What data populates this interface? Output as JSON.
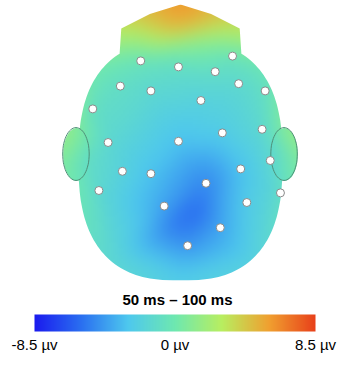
{
  "chart_data": {
    "type": "scalp_map",
    "title": "50 ms – 100 ms",
    "electrodes": [
      {
        "x": 0.07,
        "y": 0.71,
        "value": -4.5
      },
      {
        "x": -0.16,
        "y": 0.38,
        "value": -4
      },
      {
        "x": 0.39,
        "y": 0.56,
        "value": -4
      },
      {
        "x": 0.65,
        "y": 0.35,
        "value": -2.5
      },
      {
        "x": 0.98,
        "y": 0.27,
        "value": -1.5
      },
      {
        "x": -0.8,
        "y": 0.25,
        "value": -1.5
      },
      {
        "x": -0.57,
        "y": 0.09,
        "value": -2
      },
      {
        "x": -0.29,
        "y": 0.11,
        "value": -3
      },
      {
        "x": 0.25,
        "y": 0.19,
        "value": -5
      },
      {
        "x": 0.59,
        "y": 0.07,
        "value": -3
      },
      {
        "x": 0.88,
        "y": 0.0,
        "value": -1.5
      },
      {
        "x": -0.71,
        "y": -0.15,
        "value": -1.5
      },
      {
        "x": -0.02,
        "y": -0.16,
        "value": -3
      },
      {
        "x": 0.41,
        "y": -0.23,
        "value": -2.5
      },
      {
        "x": 0.8,
        "y": -0.26,
        "value": -1.5
      },
      {
        "x": -0.86,
        "y": -0.43,
        "value": -1
      },
      {
        "x": -0.59,
        "y": -0.62,
        "value": -1
      },
      {
        "x": -0.29,
        "y": -0.58,
        "value": -1.5
      },
      {
        "x": 0.2,
        "y": -0.5,
        "value": -2
      },
      {
        "x": 0.57,
        "y": -0.64,
        "value": -1.5
      },
      {
        "x": 0.83,
        "y": -0.58,
        "value": -1
      },
      {
        "x": -0.39,
        "y": -0.83,
        "value": -0.5
      },
      {
        "x": -0.02,
        "y": -0.78,
        "value": -1
      },
      {
        "x": 0.34,
        "y": -0.74,
        "value": -1
      },
      {
        "x": 0.51,
        "y": -0.87,
        "value": -0.5
      }
    ],
    "potential_samples": [
      {
        "x": 0.15,
        "y": 0.41,
        "value": -6
      },
      {
        "x": -0.05,
        "y": 0.53,
        "value": -5.5
      },
      {
        "x": 0.0,
        "y": 0.98,
        "value": -2.5
      },
      {
        "x": -0.69,
        "y": 0.85,
        "value": -1.5
      },
      {
        "x": 0.74,
        "y": 0.85,
        "value": -2
      },
      {
        "x": -0.98,
        "y": -0.03,
        "value": -0.8
      },
      {
        "x": 1.03,
        "y": -0.03,
        "value": -1
      },
      {
        "x": -0.93,
        "y": -0.84,
        "value": 0.5
      },
      {
        "x": 0.98,
        "y": -0.84,
        "value": 0.5
      },
      {
        "x": 0.0,
        "y": -0.96,
        "value": 1
      },
      {
        "x": 0.0,
        "y": -1.12,
        "value": 5
      },
      {
        "x": -0.49,
        "y": -1.18,
        "value": 4
      },
      {
        "x": 0.49,
        "y": -1.18,
        "value": 4
      },
      {
        "x": 0.0,
        "y": -1.3,
        "value": 6
      },
      {
        "x": -1.13,
        "y": 0.05,
        "value": 0.5
      },
      {
        "x": 1.13,
        "y": 0.05,
        "value": 0.5
      },
      {
        "x": -1.1,
        "y": -0.19,
        "value": 1.5
      },
      {
        "x": 1.1,
        "y": -0.19,
        "value": 1.5
      }
    ],
    "colorbar": {
      "range": [
        -8.5,
        8.5
      ],
      "ticks": [
        {
          "value": -8.5,
          "label": "-8.5 µv"
        },
        {
          "value": 0,
          "label": "0 µv"
        },
        {
          "value": 8.5,
          "label": "8.5 µv"
        }
      ]
    }
  }
}
